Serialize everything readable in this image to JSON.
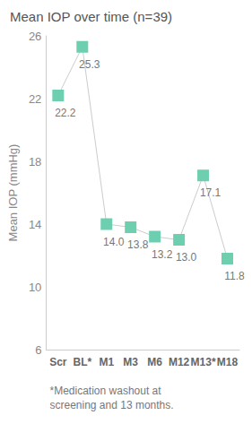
{
  "chart_data": {
    "type": "line",
    "title": "Mean IOP over time (n=39)",
    "y_label": "Mean IOP (mmHg)",
    "categories": [
      "Scr",
      "BL*",
      "M1",
      "M3",
      "M6",
      "M12",
      "M13*",
      "M18"
    ],
    "values": [
      22.2,
      25.3,
      14.0,
      13.8,
      13.2,
      13.0,
      17.1,
      11.8
    ],
    "value_labels": [
      "22.2",
      "25.3",
      "14.0",
      "13.8",
      "13.2",
      "13.0",
      "17.1",
      "11.8"
    ],
    "color": "#6dcfb0",
    "marker": "square",
    "ylim": [
      6,
      26
    ],
    "yticks": [
      6,
      10,
      14,
      18,
      22,
      26
    ],
    "grid": false,
    "data_labels": true,
    "annotation": "*Medication washout at screening and 13 months."
  }
}
